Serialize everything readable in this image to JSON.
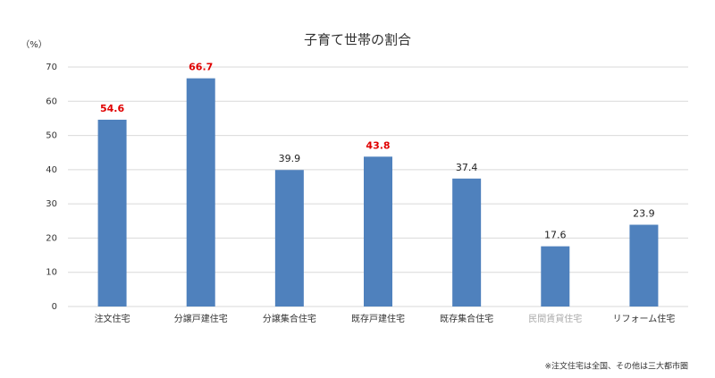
{
  "chart_data": {
    "type": "bar",
    "title": "子育て世帯の割合",
    "y_unit_label": "（%）",
    "categories": [
      "注文住宅",
      "分譲戸建住宅",
      "分譲集合住宅",
      "既存戸建住宅",
      "既存集合住宅",
      "民間賃貸住宅",
      "リフォーム住宅"
    ],
    "values": [
      54.6,
      66.7,
      39.9,
      43.8,
      37.4,
      17.6,
      23.9
    ],
    "color": "#4f81bd",
    "value_label_colors": [
      "#e00000",
      "#e00000",
      "#222222",
      "#e00000",
      "#222222",
      "#222222",
      "#222222"
    ],
    "value_label_weights": [
      "bold",
      "bold",
      "normal",
      "bold",
      "normal",
      "normal",
      "normal"
    ],
    "category_label_colors": [
      "#333333",
      "#333333",
      "#333333",
      "#333333",
      "#333333",
      "#aaaaaa",
      "#333333"
    ],
    "ylim": [
      0,
      70
    ],
    "yticks": [
      0,
      10,
      20,
      30,
      40,
      50,
      60,
      70
    ],
    "grid": true,
    "annotation": "※注文住宅は全国、その他は三大都市圏"
  }
}
